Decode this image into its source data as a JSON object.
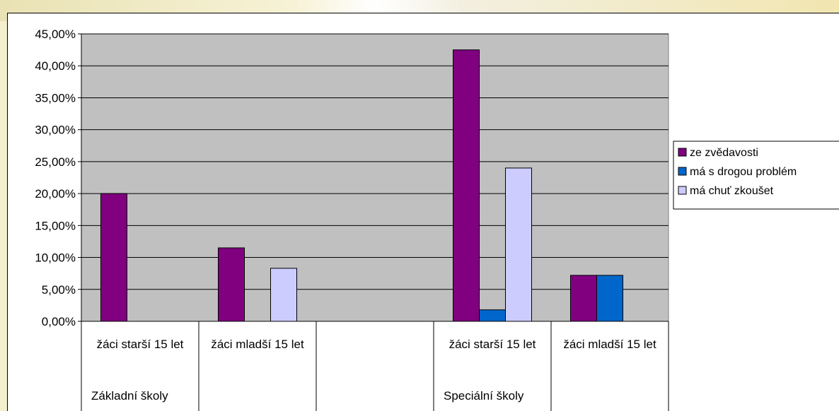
{
  "chart_data": {
    "type": "bar",
    "ylim": [
      0,
      45
    ],
    "y_ticks": [
      "0,00%",
      "5,00%",
      "10,00%",
      "15,00%",
      "20,00%",
      "25,00%",
      "30,00%",
      "35,00%",
      "40,00%",
      "45,00%"
    ],
    "grid": true,
    "legend_position": "right",
    "categories": [
      {
        "label": "žáci starší 15 let",
        "group": "Základní školy"
      },
      {
        "label": "žáci mladší 15 let",
        "group": ""
      },
      {
        "label": "",
        "group": ""
      },
      {
        "label": "žáci starší 15 let",
        "group": "Speciální školy"
      },
      {
        "label": "žáci mladší 15 let",
        "group": ""
      }
    ],
    "series": [
      {
        "name": "ze zvědavosti",
        "color": "#800080",
        "values": [
          20,
          11.5,
          null,
          42.5,
          7.2
        ]
      },
      {
        "name": "má s drogou problém",
        "color": "#0066cc",
        "values": [
          null,
          null,
          null,
          1.8,
          7.2
        ]
      },
      {
        "name": "má chuť zkoušet",
        "color": "#ccccff",
        "values": [
          null,
          8.3,
          null,
          24,
          null
        ]
      }
    ]
  }
}
